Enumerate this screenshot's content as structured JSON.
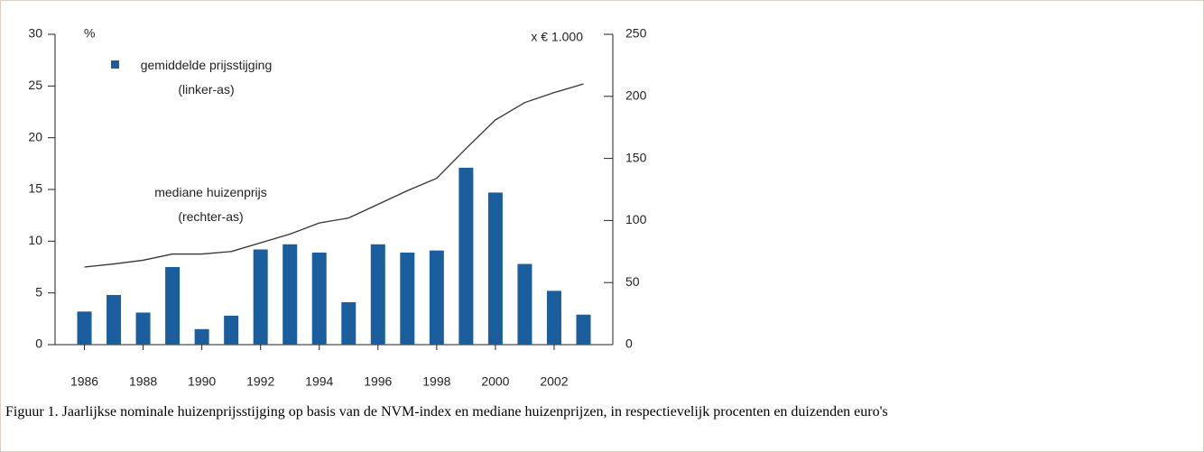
{
  "chart_data": {
    "type": "bar",
    "x": [
      1986,
      1987,
      1988,
      1989,
      1990,
      1991,
      1992,
      1993,
      1994,
      1995,
      1996,
      1997,
      1998,
      1999,
      2000,
      2001,
      2002,
      2003
    ],
    "xlim": [
      1985,
      2004
    ],
    "xticks": [
      1986,
      1988,
      1990,
      1992,
      1994,
      1996,
      1998,
      2000,
      2002
    ],
    "ylim": [
      0,
      30
    ],
    "yticks": [
      0,
      5,
      10,
      15,
      20,
      25,
      30
    ],
    "y2lim": [
      0,
      250
    ],
    "y2ticks": [
      0,
      50,
      100,
      150,
      200,
      250
    ],
    "ylabel": "%",
    "y2label": "x € 1.000",
    "series": [
      {
        "name": "gemiddelde prijsstijging (linker-as)",
        "type": "bar",
        "color": "#1b5e9e",
        "values": [
          3.2,
          4.8,
          3.1,
          7.5,
          1.5,
          2.8,
          9.2,
          9.7,
          8.9,
          4.1,
          9.7,
          8.9,
          9.1,
          17.1,
          14.7,
          7.8,
          5.2,
          2.9
        ]
      },
      {
        "name": "mediane huizenprijs (rechter-as)",
        "type": "line",
        "axis": "y2",
        "color": "#333333",
        "values": [
          62.5,
          65,
          68,
          73,
          73,
          75,
          82,
          89,
          98,
          102,
          113,
          124,
          134,
          158,
          181,
          195,
          203,
          210
        ]
      }
    ]
  },
  "caption": "Figuur 1. Jaarlijkse nominale huizenprijsstijging op basis van de NVM-index en mediane huizenprijzen, in respectievelijk procenten en duizenden euro's"
}
